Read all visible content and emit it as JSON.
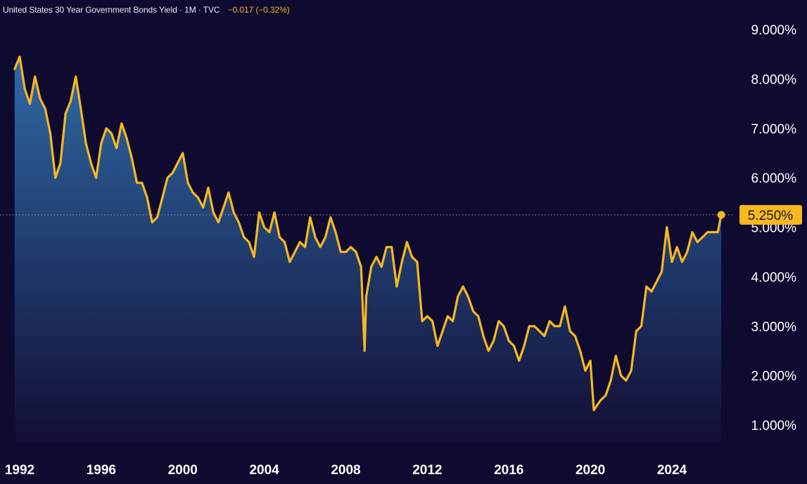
{
  "header": {
    "symbol_title": "United States 30 Year Government Bonds Yield · 1M · TVC",
    "change": "−0.017 (−0.32%)"
  },
  "colors": {
    "background": "#0e0a30",
    "line": "#f7b81e",
    "area_top": "#2f6aa6",
    "area_bottom": "#120e35",
    "axis_text": "#ffffff",
    "price_tag_bg": "#f7b81e",
    "price_tag_text": "#1a1a1a"
  },
  "chart_data": {
    "type": "area",
    "title": "United States 30 Year Government Bonds Yield",
    "timeframe": "1M",
    "source": "TVC",
    "y_ticks": [
      "9.000%",
      "8.000%",
      "7.000%",
      "6.000%",
      "5.000%",
      "4.000%",
      "3.000%",
      "2.000%",
      "1.000%"
    ],
    "x_ticks": [
      "1992",
      "1996",
      "2000",
      "2004",
      "2008",
      "2012",
      "2016",
      "2020",
      "2024"
    ],
    "ylim": [
      0.5,
      9.4
    ],
    "xlim": [
      1991.7,
      2027.0
    ],
    "last_value_label": "5.250%",
    "last_value": 5.25,
    "x": [
      1991.75,
      1992.0,
      1992.25,
      1992.5,
      1992.75,
      1993.0,
      1993.25,
      1993.5,
      1993.75,
      1994.0,
      1994.25,
      1994.5,
      1994.75,
      1995.0,
      1995.25,
      1995.5,
      1995.75,
      1996.0,
      1996.25,
      1996.5,
      1996.75,
      1997.0,
      1997.25,
      1997.5,
      1997.75,
      1998.0,
      1998.25,
      1998.5,
      1998.75,
      1999.0,
      1999.25,
      1999.5,
      1999.75,
      2000.0,
      2000.25,
      2000.5,
      2000.75,
      2001.0,
      2001.25,
      2001.5,
      2001.75,
      2002.0,
      2002.25,
      2002.5,
      2002.75,
      2003.0,
      2003.25,
      2003.5,
      2003.75,
      2004.0,
      2004.25,
      2004.5,
      2004.75,
      2005.0,
      2005.25,
      2005.5,
      2005.75,
      2006.0,
      2006.25,
      2006.5,
      2006.75,
      2007.0,
      2007.25,
      2007.5,
      2007.75,
      2008.0,
      2008.25,
      2008.5,
      2008.75,
      2008.92,
      2009.0,
      2009.25,
      2009.5,
      2009.75,
      2010.0,
      2010.25,
      2010.5,
      2010.75,
      2011.0,
      2011.25,
      2011.5,
      2011.75,
      2012.0,
      2012.25,
      2012.5,
      2012.75,
      2013.0,
      2013.25,
      2013.5,
      2013.75,
      2014.0,
      2014.25,
      2014.5,
      2014.75,
      2015.0,
      2015.25,
      2015.5,
      2015.75,
      2016.0,
      2016.25,
      2016.5,
      2016.75,
      2017.0,
      2017.25,
      2017.5,
      2017.75,
      2018.0,
      2018.25,
      2018.5,
      2018.75,
      2019.0,
      2019.25,
      2019.5,
      2019.75,
      2020.0,
      2020.17,
      2020.33,
      2020.5,
      2020.75,
      2021.0,
      2021.25,
      2021.5,
      2021.75,
      2022.0,
      2022.25,
      2022.5,
      2022.75,
      2023.0,
      2023.25,
      2023.5,
      2023.75,
      2024.0,
      2024.25,
      2024.5,
      2024.75,
      2025.0,
      2025.25,
      2025.5,
      2025.75,
      2026.0,
      2026.25,
      2026.42
    ],
    "values": [
      8.2,
      8.45,
      7.8,
      7.5,
      8.05,
      7.6,
      7.4,
      6.9,
      6.0,
      6.3,
      7.3,
      7.55,
      8.05,
      7.4,
      6.7,
      6.3,
      6.0,
      6.7,
      7.0,
      6.9,
      6.6,
      7.1,
      6.8,
      6.4,
      5.9,
      5.9,
      5.6,
      5.1,
      5.2,
      5.6,
      6.0,
      6.1,
      6.3,
      6.5,
      5.9,
      5.7,
      5.6,
      5.4,
      5.8,
      5.3,
      5.1,
      5.4,
      5.7,
      5.3,
      5.1,
      4.8,
      4.7,
      4.4,
      5.3,
      5.0,
      4.9,
      5.3,
      4.8,
      4.7,
      4.3,
      4.5,
      4.7,
      4.6,
      5.2,
      4.8,
      4.6,
      4.8,
      5.2,
      4.9,
      4.5,
      4.5,
      4.6,
      4.5,
      4.2,
      2.5,
      3.6,
      4.2,
      4.4,
      4.2,
      4.6,
      4.6,
      3.8,
      4.3,
      4.7,
      4.4,
      4.3,
      3.1,
      3.2,
      3.1,
      2.6,
      2.9,
      3.2,
      3.1,
      3.6,
      3.8,
      3.6,
      3.3,
      3.2,
      2.8,
      2.5,
      2.7,
      3.1,
      3.0,
      2.7,
      2.6,
      2.3,
      2.6,
      3.0,
      3.0,
      2.9,
      2.8,
      3.1,
      3.0,
      3.0,
      3.4,
      2.9,
      2.8,
      2.5,
      2.1,
      2.3,
      1.3,
      1.4,
      1.5,
      1.6,
      1.9,
      2.4,
      2.0,
      1.9,
      2.1,
      2.9,
      3.0,
      3.8,
      3.7,
      3.9,
      4.1,
      5.0,
      4.3,
      4.6,
      4.3,
      4.5,
      4.9,
      4.7,
      4.8,
      4.9,
      4.9,
      4.9,
      5.25
    ]
  }
}
